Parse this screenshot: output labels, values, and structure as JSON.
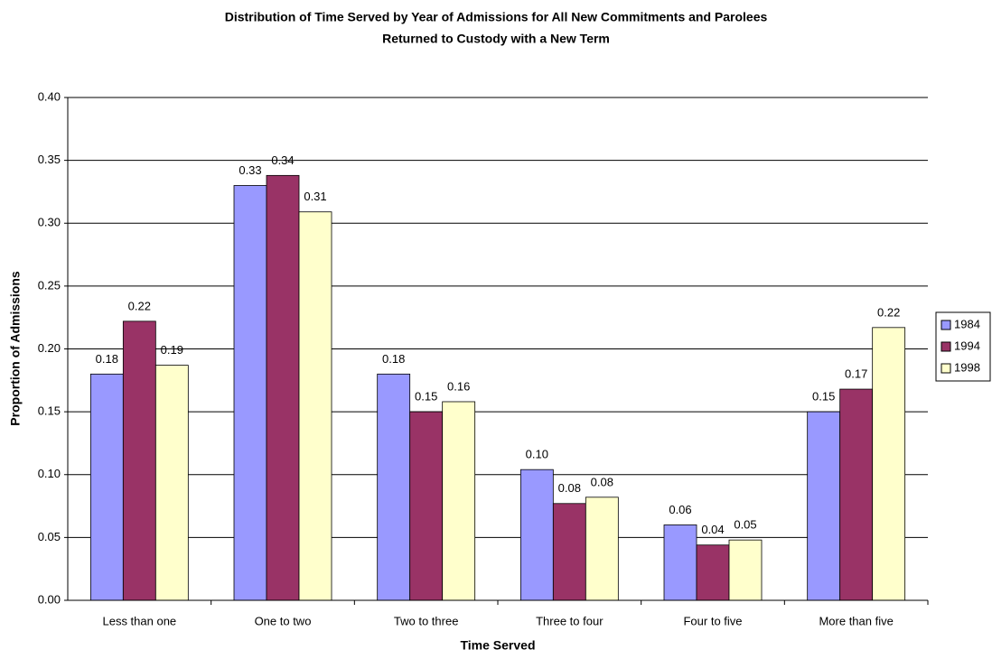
{
  "chart_data": {
    "type": "bar",
    "title": "Distribution of Time Served by Year of Admissions for All New Commitments and Parolees",
    "subtitle": "Returned to Custody with a New Term",
    "x_label": "Time Served",
    "y_label": "Proportion of Admissions",
    "categories": [
      "Less than one",
      "One to two",
      "Two to three",
      "Three to four",
      "Four to five",
      "More than five"
    ],
    "series": [
      {
        "name": "1984",
        "color": "#9999ff",
        "values": [
          0.18,
          0.33,
          0.18,
          0.104,
          0.06,
          0.15
        ],
        "value_labels": [
          "0.18",
          "0.33",
          "0.18",
          "0.10",
          "0.06",
          "0.15"
        ]
      },
      {
        "name": "1994",
        "color": "#993366",
        "values": [
          0.222,
          0.338,
          0.15,
          0.077,
          0.044,
          0.168
        ],
        "value_labels": [
          "0.22",
          "0.34",
          "0.15",
          "0.08",
          "0.04",
          "0.17"
        ]
      },
      {
        "name": "1998",
        "color": "#ffffcc",
        "values": [
          0.187,
          0.309,
          0.158,
          0.082,
          0.048,
          0.217
        ],
        "value_labels": [
          "0.19",
          "0.31",
          "0.16",
          "0.08",
          "0.05",
          "0.22"
        ]
      }
    ],
    "ylim": [
      0,
      0.4
    ],
    "yticks": [
      {
        "value": 0,
        "label": "0.00"
      },
      {
        "value": 0.05,
        "label": "0.05"
      },
      {
        "value": 0.1,
        "label": "0.10"
      },
      {
        "value": 0.15,
        "label": "0.15"
      },
      {
        "value": 0.2,
        "label": "0.20"
      },
      {
        "value": 0.25,
        "label": "0.25"
      },
      {
        "value": 0.3,
        "label": "0.30"
      },
      {
        "value": 0.35,
        "label": "0.35"
      },
      {
        "value": 0.4,
        "label": "0.40"
      }
    ],
    "grid": true,
    "legend": "right"
  }
}
